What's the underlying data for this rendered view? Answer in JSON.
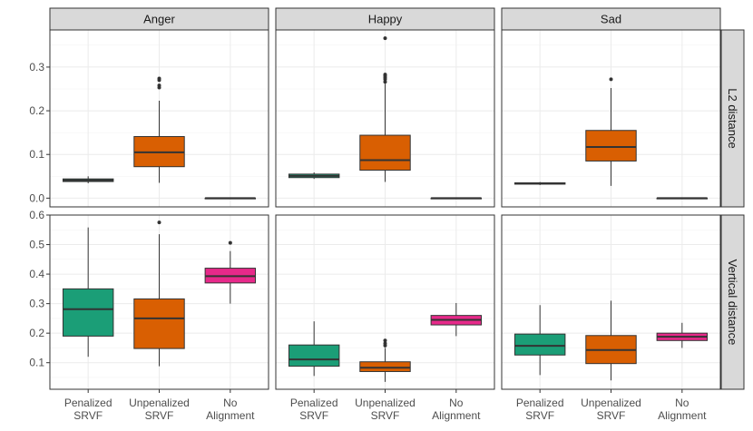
{
  "chart_data": {
    "type": "boxplot",
    "columns": [
      "Anger",
      "Happy",
      "Sad"
    ],
    "rows": [
      "L2 distance",
      "Vertical distance"
    ],
    "categories": [
      {
        "key": "penalized",
        "lines": [
          "Penalized",
          "SRVF"
        ],
        "color": "#1b9e77"
      },
      {
        "key": "unpenalized",
        "lines": [
          "Unpenalized",
          "SRVF"
        ],
        "color": "#d95f02"
      },
      {
        "key": "noalign",
        "lines": [
          "No",
          "Alignment"
        ],
        "color": "#e7298a"
      }
    ],
    "row_axes": [
      {
        "ylim": [
          -0.02,
          0.385
        ],
        "ticks": [
          "0.0",
          "0.1",
          "0.2",
          "0.3"
        ],
        "tick_values": [
          0.0,
          0.1,
          0.2,
          0.3
        ]
      },
      {
        "ylim": [
          0.01,
          0.6
        ],
        "ticks": [
          "0.1",
          "0.2",
          "0.3",
          "0.4",
          "0.5",
          "0.6"
        ],
        "tick_values": [
          0.1,
          0.2,
          0.3,
          0.4,
          0.5,
          0.6
        ]
      }
    ],
    "grid": true,
    "panels": [
      {
        "row": "L2 distance",
        "column": "Anger",
        "boxes": [
          {
            "category": "penalized",
            "min": 0.034,
            "q1": 0.038,
            "median": 0.041,
            "q3": 0.044,
            "max": 0.05,
            "outliers": []
          },
          {
            "category": "unpenalized",
            "min": 0.035,
            "q1": 0.072,
            "median": 0.105,
            "q3": 0.141,
            "max": 0.223,
            "outliers": [
              0.253,
              0.258,
              0.27,
              0.274
            ]
          },
          {
            "category": "noalign",
            "min": 0.0,
            "q1": 0.0,
            "median": 0.0,
            "q3": 0.0,
            "max": 0.0,
            "outliers": []
          }
        ]
      },
      {
        "row": "L2 distance",
        "column": "Happy",
        "boxes": [
          {
            "category": "penalized",
            "min": 0.044,
            "q1": 0.047,
            "median": 0.051,
            "q3": 0.055,
            "max": 0.059,
            "outliers": []
          },
          {
            "category": "unpenalized",
            "min": 0.037,
            "q1": 0.064,
            "median": 0.087,
            "q3": 0.144,
            "max": 0.262,
            "outliers": [
              0.266,
              0.272,
              0.276,
              0.28,
              0.283,
              0.366
            ]
          },
          {
            "category": "noalign",
            "min": 0.0,
            "q1": 0.0,
            "median": 0.0,
            "q3": 0.0,
            "max": 0.0,
            "outliers": []
          }
        ]
      },
      {
        "row": "L2 distance",
        "column": "Sad",
        "boxes": [
          {
            "category": "penalized",
            "min": 0.03,
            "q1": 0.032,
            "median": 0.034,
            "q3": 0.035,
            "max": 0.037,
            "outliers": []
          },
          {
            "category": "unpenalized",
            "min": 0.028,
            "q1": 0.085,
            "median": 0.117,
            "q3": 0.155,
            "max": 0.252,
            "outliers": [
              0.272
            ]
          },
          {
            "category": "noalign",
            "min": 0.0,
            "q1": 0.0,
            "median": 0.0,
            "q3": 0.0,
            "max": 0.0,
            "outliers": []
          }
        ]
      },
      {
        "row": "Vertical distance",
        "column": "Anger",
        "boxes": [
          {
            "category": "penalized",
            "min": 0.12,
            "q1": 0.19,
            "median": 0.281,
            "q3": 0.35,
            "max": 0.558,
            "outliers": []
          },
          {
            "category": "unpenalized",
            "min": 0.088,
            "q1": 0.148,
            "median": 0.25,
            "q3": 0.316,
            "max": 0.535,
            "outliers": [
              0.575
            ]
          },
          {
            "category": "noalign",
            "min": 0.3,
            "q1": 0.37,
            "median": 0.393,
            "q3": 0.42,
            "max": 0.478,
            "outliers": [
              0.506
            ]
          }
        ]
      },
      {
        "row": "Vertical distance",
        "column": "Happy",
        "boxes": [
          {
            "category": "penalized",
            "min": 0.055,
            "q1": 0.088,
            "median": 0.111,
            "q3": 0.16,
            "max": 0.24,
            "outliers": []
          },
          {
            "category": "unpenalized",
            "min": 0.035,
            "q1": 0.07,
            "median": 0.083,
            "q3": 0.103,
            "max": 0.15,
            "outliers": [
              0.158,
              0.165,
              0.175
            ]
          },
          {
            "category": "noalign",
            "min": 0.19,
            "q1": 0.228,
            "median": 0.245,
            "q3": 0.26,
            "max": 0.302,
            "outliers": []
          }
        ]
      },
      {
        "row": "Vertical distance",
        "column": "Sad",
        "boxes": [
          {
            "category": "penalized",
            "min": 0.058,
            "q1": 0.126,
            "median": 0.157,
            "q3": 0.197,
            "max": 0.295,
            "outliers": []
          },
          {
            "category": "unpenalized",
            "min": 0.04,
            "q1": 0.097,
            "median": 0.143,
            "q3": 0.192,
            "max": 0.31,
            "outliers": []
          },
          {
            "category": "noalign",
            "min": 0.15,
            "q1": 0.175,
            "median": 0.188,
            "q3": 0.2,
            "max": 0.235,
            "outliers": []
          }
        ]
      }
    ]
  }
}
